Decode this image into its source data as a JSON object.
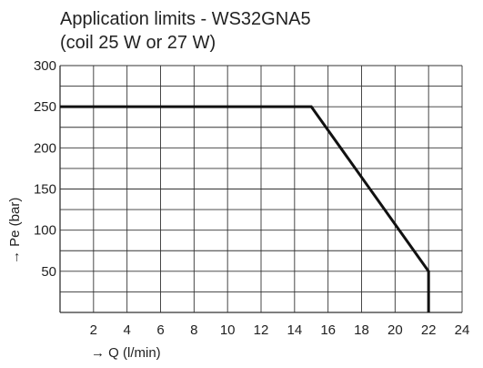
{
  "chart_data": {
    "type": "line",
    "title_line1": "Application limits - WS32GNA5",
    "title_line2": "(coil 25 W or 27 W)",
    "xlabel": "→ Q (l/min)",
    "ylabel": "→ Pe (bar)",
    "xlim": [
      0,
      24
    ],
    "ylim": [
      0,
      300
    ],
    "x_ticks": [
      2,
      4,
      6,
      8,
      10,
      12,
      14,
      16,
      18,
      20,
      22,
      24
    ],
    "y_ticks": [
      50,
      100,
      150,
      200,
      250,
      300
    ],
    "grid": true,
    "grid_x_step": 2,
    "grid_y_step": 25,
    "series": [
      {
        "x": [
          0,
          15,
          22,
          22
        ],
        "y": [
          250,
          250,
          50,
          0
        ]
      }
    ],
    "colors": {
      "grid": "#333333",
      "line": "#111111",
      "text": "#222222"
    }
  }
}
